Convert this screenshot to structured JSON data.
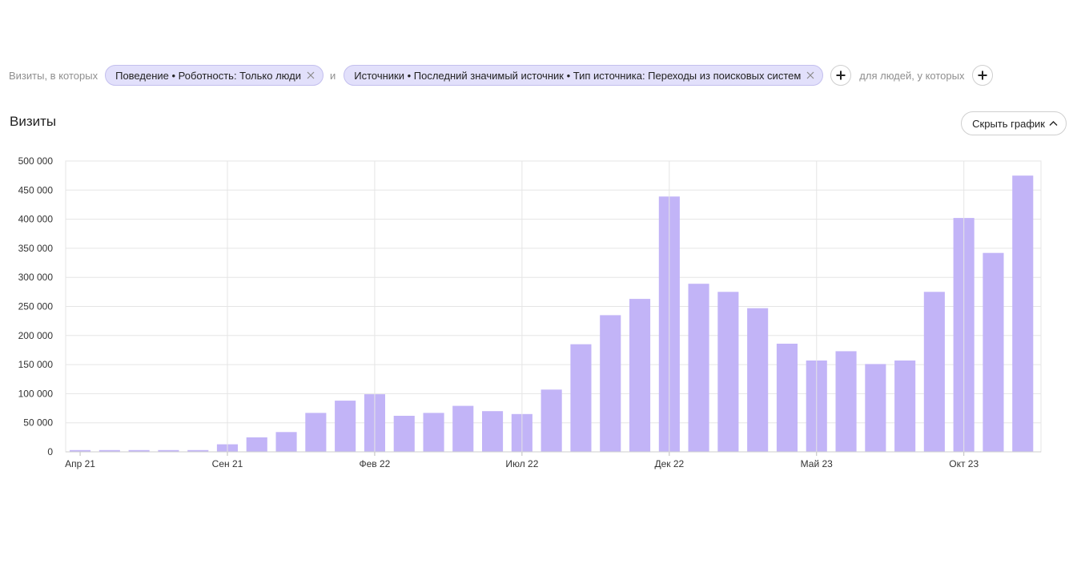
{
  "segment": {
    "prefix": "Визиты, в которых",
    "filters": [
      "Поведение • Роботность: Только люди",
      "Источники • Последний значимый источник • Тип источника: Переходы из поисковых систем"
    ],
    "joiner": "и",
    "people_label": "для людей, у которых"
  },
  "chart_title": "Визиты",
  "hide_chart_label": "Скрыть график",
  "icons": {
    "remove": "close-icon",
    "add": "plus-icon",
    "collapse": "chevron-up-icon"
  },
  "colors": {
    "bar": "#c2b4f7",
    "chip_bg": "#e2e0fb",
    "chip_border": "#c3bfee",
    "grid": "#e5e5e5"
  },
  "chart_data": {
    "type": "bar",
    "title": "Визиты",
    "categories": [
      "Апр 21",
      "",
      "",
      "",
      "",
      "Сен 21",
      "",
      "",
      "",
      "",
      "Фев 22",
      "",
      "",
      "",
      "",
      "Июл 22",
      "",
      "",
      "",
      "",
      "Дек 22",
      "",
      "",
      "",
      "",
      "Май 23",
      "",
      "",
      "",
      "",
      "Окт 23",
      "",
      ""
    ],
    "series": [
      {
        "values": [
          3000,
          3000,
          3000,
          3000,
          3000,
          13000,
          25000,
          34000,
          67000,
          88000,
          99000,
          62000,
          67000,
          79000,
          70000,
          65000,
          107000,
          185000,
          235000,
          263000,
          439000,
          289000,
          275000,
          247000,
          186000,
          157000,
          173000,
          151000,
          157000,
          275000,
          402000,
          342000,
          475000
        ]
      }
    ],
    "ylim": [
      0,
      500000
    ],
    "yticks": [
      "0",
      "50 000",
      "100 000",
      "150 000",
      "200 000",
      "250 000",
      "300 000",
      "350 000",
      "400 000",
      "450 000",
      "500 000"
    ],
    "xlabel": "",
    "ylabel": "",
    "grid": true,
    "legend": "none"
  }
}
